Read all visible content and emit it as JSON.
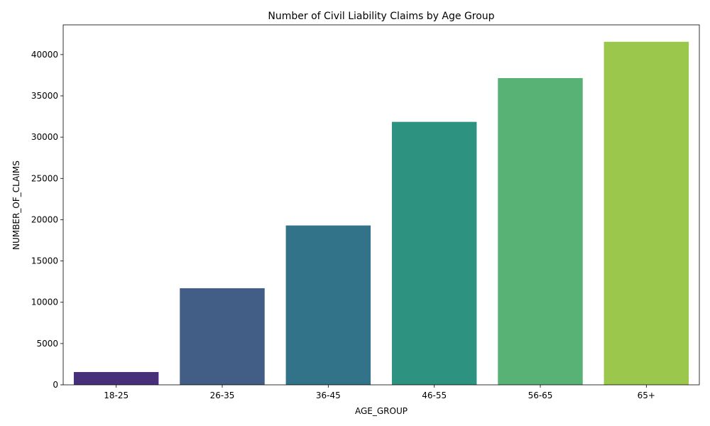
{
  "chart_data": {
    "type": "bar",
    "title": "Number of Civil Liability Claims by Age Group",
    "xlabel": "AGE_GROUP",
    "ylabel": "NUMBER_OF_CLAIMS",
    "categories": [
      "18-25",
      "26-35",
      "36-45",
      "46-55",
      "56-65",
      "65+"
    ],
    "values": [
      1550,
      11700,
      19300,
      31850,
      37150,
      41550
    ],
    "colors": [
      "#482f7a",
      "#425d86",
      "#33738a",
      "#2d9380",
      "#58b276",
      "#9bc74c"
    ],
    "ylim": [
      0,
      43600
    ],
    "yticks": [
      0,
      5000,
      10000,
      15000,
      20000,
      25000,
      30000,
      35000,
      40000
    ],
    "grid": false,
    "legend": "none"
  }
}
